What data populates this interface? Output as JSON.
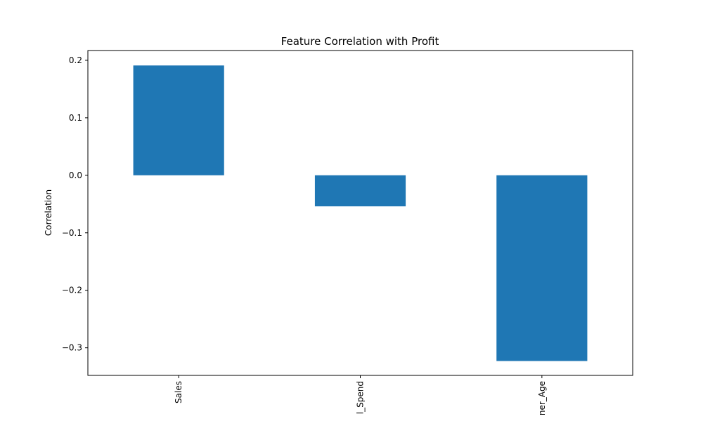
{
  "chart_data": {
    "type": "bar",
    "title": "Feature Correlation with Profit",
    "xlabel": "",
    "ylabel": "Correlation",
    "categories": [
      "Sales",
      "l_Spend",
      "ner_Age"
    ],
    "values": [
      0.191,
      -0.054,
      -0.323
    ],
    "ylim": [
      -0.348,
      0.217
    ],
    "yticks": [
      0.2,
      0.1,
      0.0,
      -0.1,
      -0.2,
      -0.3
    ],
    "ytick_labels": [
      "0.2",
      "0.1",
      "0.0",
      "−0.1",
      "−0.2",
      "−0.3"
    ],
    "bar_color": "#1f77b4",
    "grid": false,
    "legend": "none"
  }
}
